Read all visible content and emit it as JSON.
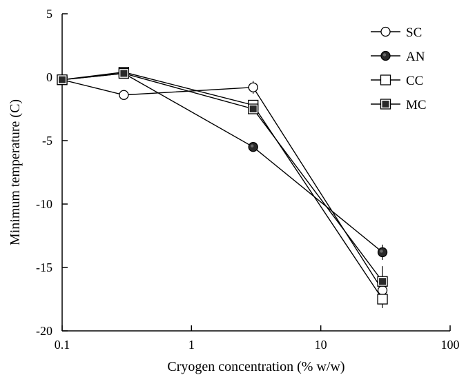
{
  "chart_data": {
    "type": "line",
    "title": "",
    "xlabel": "Cryogen concentration (% w/w)",
    "ylabel": "Minimum temperature (C)",
    "xscale": "log",
    "xlim": [
      0.1,
      100
    ],
    "ylim": [
      -20,
      5
    ],
    "xticks": [
      0.1,
      1,
      10,
      100
    ],
    "xtick_labels": [
      "0.1",
      "1",
      "10",
      "100"
    ],
    "yticks": [
      5,
      0,
      -5,
      -10,
      -15,
      -20
    ],
    "ytick_labels": [
      "5",
      "0",
      "-5",
      "-10",
      "-15",
      "-20"
    ],
    "grid": false,
    "legend_position": "top-right",
    "x": [
      0.1,
      0.3,
      3,
      30
    ],
    "series": [
      {
        "name": "SC",
        "marker": "open-circle",
        "values": [
          -0.2,
          -1.4,
          -0.8,
          -16.8
        ],
        "err": [
          0,
          0.3,
          0.5,
          0.6
        ]
      },
      {
        "name": "AN",
        "marker": "filled-circle",
        "values": [
          -0.2,
          0.3,
          -5.5,
          -13.8
        ],
        "err": [
          0,
          0.2,
          0.3,
          0.6
        ]
      },
      {
        "name": "CC",
        "marker": "open-square",
        "values": [
          -0.2,
          0.4,
          -2.2,
          -17.5
        ],
        "err": [
          0,
          0.2,
          0.3,
          0.7
        ]
      },
      {
        "name": "MC",
        "marker": "filled-square",
        "values": [
          -0.2,
          0.3,
          -2.5,
          -16.1
        ],
        "err": [
          0,
          0.2,
          0.3,
          1.2
        ]
      }
    ]
  }
}
